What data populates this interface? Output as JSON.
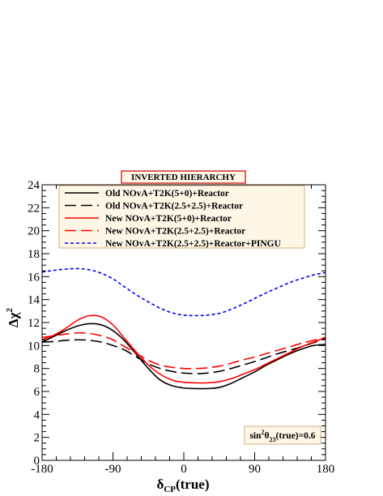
{
  "chart_data": {
    "type": "line",
    "title": "INVERTED HIERARCHY",
    "xlabel": "δ",
    "xlabel_sub": "CP",
    "xlabel_suffix": "(true)",
    "ylabel": "Δχ",
    "ylabel_sup": "2",
    "xlim": [
      -180,
      180
    ],
    "ylim": [
      0,
      24
    ],
    "x_ticks": [
      -180,
      -90,
      0,
      90,
      180
    ],
    "y_ticks": [
      0,
      2,
      4,
      6,
      8,
      10,
      12,
      14,
      16,
      18,
      20,
      22,
      24
    ],
    "grid": false,
    "legend_position": "top-left",
    "annotation": {
      "prefix": "sin",
      "sup": "2",
      "greek": "θ",
      "sub": "23",
      "suffix": "(true)=0.6"
    },
    "x": [
      -180,
      -165,
      -150,
      -135,
      -120,
      -105,
      -90,
      -75,
      -60,
      -45,
      -30,
      -15,
      0,
      15,
      30,
      45,
      60,
      75,
      90,
      105,
      120,
      135,
      150,
      165,
      180
    ],
    "series": [
      {
        "name": "Old NOvA+T2K(5+0)+Reactor",
        "color": "#000000",
        "dash": "solid",
        "values": [
          10.3,
          10.8,
          11.3,
          11.7,
          11.9,
          11.8,
          11.3,
          10.4,
          9.2,
          8.0,
          7.0,
          6.5,
          6.3,
          6.25,
          6.25,
          6.35,
          6.7,
          7.2,
          7.7,
          8.3,
          8.8,
          9.3,
          9.7,
          10.0,
          10.1
        ]
      },
      {
        "name": "Old NOvA+T2K(2.5+2.5)+Reactor",
        "color": "#000000",
        "dash": "long",
        "values": [
          10.3,
          10.35,
          10.45,
          10.5,
          10.45,
          10.3,
          10.0,
          9.6,
          9.0,
          8.4,
          8.0,
          7.75,
          7.6,
          7.55,
          7.6,
          7.75,
          8.0,
          8.3,
          8.6,
          8.95,
          9.3,
          9.6,
          9.9,
          10.25,
          10.6
        ]
      },
      {
        "name": "New NOvA+T2K(5+0)+Reactor",
        "color": "#ff0000",
        "dash": "solid",
        "values": [
          10.5,
          10.9,
          11.5,
          12.2,
          12.6,
          12.5,
          11.8,
          10.6,
          9.4,
          8.3,
          7.5,
          7.0,
          6.8,
          6.75,
          6.75,
          6.85,
          7.1,
          7.5,
          7.9,
          8.4,
          8.9,
          9.4,
          9.9,
          10.3,
          10.7
        ]
      },
      {
        "name": "New NOvA+T2K(2.5+2.5)+Reactor",
        "color": "#ff0000",
        "dash": "long",
        "values": [
          10.7,
          10.85,
          11.0,
          11.1,
          11.05,
          10.85,
          10.5,
          9.9,
          9.3,
          8.7,
          8.3,
          8.1,
          8.0,
          8.0,
          8.05,
          8.2,
          8.45,
          8.75,
          9.0,
          9.3,
          9.6,
          9.9,
          10.2,
          10.45,
          10.7
        ]
      },
      {
        "name": "New NOvA+T2K(2.5+2.5)+Reactor+PINGU",
        "color": "#0000ff",
        "dash": "short",
        "values": [
          16.4,
          16.55,
          16.65,
          16.7,
          16.6,
          16.3,
          15.8,
          15.1,
          14.4,
          13.8,
          13.25,
          12.85,
          12.65,
          12.6,
          12.65,
          12.8,
          13.15,
          13.6,
          14.1,
          14.6,
          15.05,
          15.5,
          15.85,
          16.15,
          16.35
        ]
      }
    ]
  }
}
